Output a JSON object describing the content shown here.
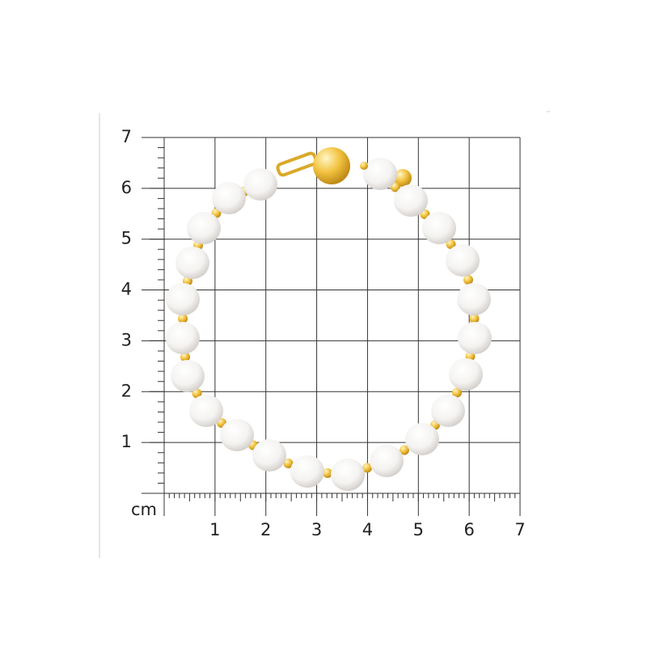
{
  "ruler": {
    "unit": "cm",
    "x_labels": [
      1,
      2,
      3,
      4,
      5,
      6,
      7
    ],
    "y_labels": [
      1,
      2,
      3,
      4,
      5,
      6,
      7
    ]
  }
}
